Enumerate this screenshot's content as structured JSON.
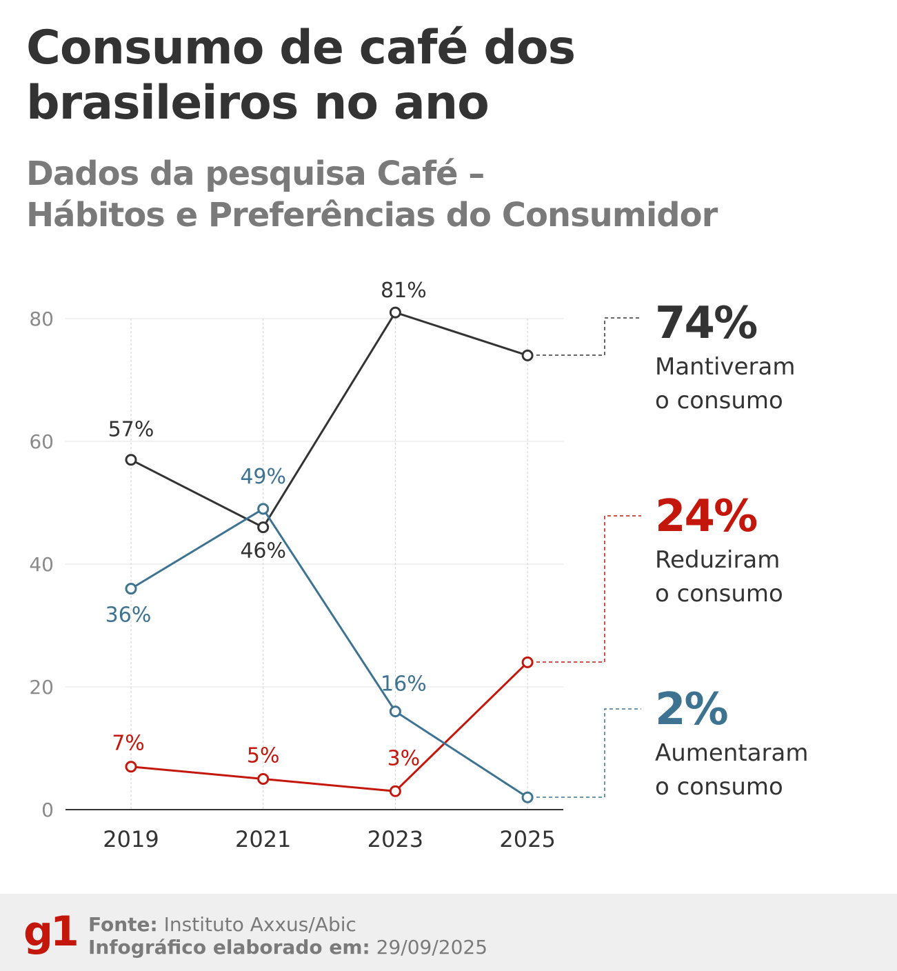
{
  "title": [
    "Consumo de café dos",
    "brasileiros no ano"
  ],
  "subtitle": [
    "Dados da pesquisa Café –",
    "Hábitos e Preferências do Consumidor"
  ],
  "chart_data": {
    "type": "line",
    "x": [
      "2019",
      "2021",
      "2023",
      "2025"
    ],
    "ylim": [
      0,
      80
    ],
    "yticks": [
      0,
      20,
      40,
      60,
      80
    ],
    "grid": true,
    "series": [
      {
        "name": "Mantiveram o consumo",
        "color": "#333333",
        "values": [
          57,
          46,
          81,
          74
        ],
        "labels": [
          "57%",
          "46%",
          "81%",
          ""
        ],
        "callout_value": "74%",
        "callout_text": [
          "Mantiveram",
          "o consumo"
        ]
      },
      {
        "name": "Reduziram o consumo",
        "color": "#c4170c",
        "values": [
          7,
          5,
          3,
          24
        ],
        "labels": [
          "7%",
          "5%",
          "3%",
          ""
        ],
        "callout_value": "24%",
        "callout_text": [
          "Reduziram",
          "o consumo"
        ]
      },
      {
        "name": "Aumentaram o consumo",
        "color": "#3d7391",
        "values": [
          36,
          49,
          16,
          2
        ],
        "labels": [
          "36%",
          "49%",
          "16%",
          ""
        ],
        "callout_value": "2%",
        "callout_text": [
          "Aumentaram",
          "o consumo"
        ]
      }
    ]
  },
  "footer": {
    "logo": "g1",
    "source_label": "Fonte:",
    "source": "Instituto Axxus/Abic",
    "date_label": "Infográfico elaborado em:",
    "date": "29/09/2025"
  }
}
